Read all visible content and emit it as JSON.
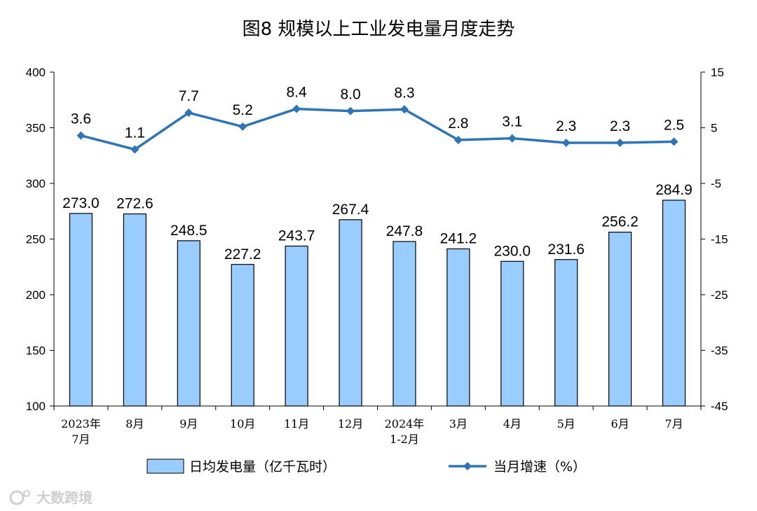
{
  "chart_data": {
    "type": "bar",
    "title": "图8  规模以上工业发电量月度走势",
    "categories": [
      [
        "2023年",
        "7月"
      ],
      [
        "8月"
      ],
      [
        "9月"
      ],
      [
        "10月"
      ],
      [
        "11月"
      ],
      [
        "12月"
      ],
      [
        "2024年",
        "1-2月"
      ],
      [
        "3月"
      ],
      [
        "4月"
      ],
      [
        "5月"
      ],
      [
        "6月"
      ],
      [
        "7月"
      ]
    ],
    "left_axis": {
      "min": 100,
      "max": 400,
      "ticks": [
        "100",
        "150",
        "200",
        "250",
        "300",
        "350",
        "400"
      ]
    },
    "right_axis": {
      "min": -45,
      "max": 15,
      "ticks": [
        "-45",
        "-35",
        "-25",
        "-15",
        "-5",
        "5",
        "15"
      ]
    },
    "series": [
      {
        "name": "日均发电量（亿千瓦时）",
        "type": "bar",
        "axis": "left",
        "values": [
          273.0,
          272.6,
          248.5,
          227.2,
          243.7,
          267.4,
          247.8,
          241.2,
          230.0,
          231.6,
          256.2,
          284.9
        ],
        "labels": [
          "273.0",
          "272.6",
          "248.5",
          "227.2",
          "243.7",
          "267.4",
          "247.8",
          "241.2",
          "230.0",
          "231.6",
          "256.2",
          "284.9"
        ],
        "color": "#99ccff"
      },
      {
        "name": "当月增速（%）",
        "type": "line",
        "axis": "right",
        "values": [
          3.6,
          1.1,
          7.7,
          5.2,
          8.4,
          8.0,
          8.3,
          2.8,
          3.1,
          2.3,
          2.3,
          2.5
        ],
        "labels": [
          "3.6",
          "1.1",
          "7.7",
          "5.2",
          "8.4",
          "8.0",
          "8.3",
          "2.8",
          "3.1",
          "2.3",
          "2.3",
          "2.5"
        ],
        "color": "#2e75b6"
      }
    ],
    "legend": "bottom",
    "grid": false
  },
  "watermark": "大数跨境"
}
